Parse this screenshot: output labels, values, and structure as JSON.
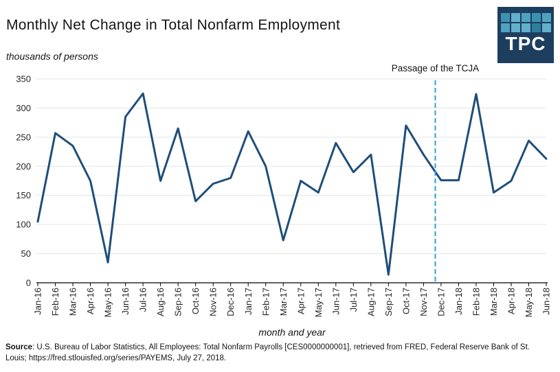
{
  "header": {
    "title": "Monthly Net Change in Total Nonfarm Employment",
    "subtitle": "thousands of persons"
  },
  "logo": {
    "text": "TPC",
    "bg": "#1E3E5F",
    "squares": [
      "#3C93B1",
      "#62B0CB",
      "#4FA2C0",
      "#3C93B1",
      "#4FA2C0",
      "#4FA2C0",
      "#62B0CB",
      "#62B0CB",
      "#2F7D9E",
      "#62B0CB"
    ]
  },
  "footer": {
    "source_label": "Source",
    "source_text": ": U.S. Bureau of Labor Statistics, All Employees: Total Nonfarm Payrolls [CES0000000001], retrieved from FRED, Federal Reserve Bank of St. Louis; https://fred.stlouisfed.org/series/PAYEMS, July 27, 2018."
  },
  "chart_data": {
    "type": "line",
    "title": "Monthly Net Change in Total Nonfarm Employment",
    "ylabel": "thousands of persons",
    "xlabel": "month and year",
    "categories": [
      "Jan-16",
      "Feb-16",
      "Mar-16",
      "Apr-16",
      "May-16",
      "Jun-16",
      "Jul-16",
      "Aug-16",
      "Sep-16",
      "Oct-16",
      "Nov-16",
      "Dec-16",
      "Jan-17",
      "Feb-17",
      "Mar-17",
      "Apr-17",
      "May-17",
      "Jun-17",
      "Jul-17",
      "Aug-17",
      "Sep-17",
      "Oct-17",
      "Nov-17",
      "Dec-17",
      "Jan-18",
      "Feb-18",
      "Mar-18",
      "Apr-18",
      "May-18",
      "Jun-18"
    ],
    "values": [
      105,
      257,
      235,
      175,
      35,
      285,
      325,
      175,
      265,
      140,
      170,
      180,
      260,
      200,
      73,
      175,
      155,
      240,
      190,
      220,
      14,
      270,
      220,
      176,
      176,
      324,
      155,
      175,
      244,
      213
    ],
    "ylim": [
      0,
      350
    ],
    "yticks": [
      0,
      50,
      100,
      150,
      200,
      250,
      300,
      350
    ],
    "grid": true,
    "legend": "none",
    "line_color": "#1F4E79",
    "grid_color": "#E3E3E3",
    "axis_color": "#000000",
    "vline": {
      "label": "Passage of the TCJA",
      "x_index": 22.67,
      "color": "#2E9FD6",
      "style": "dashed"
    }
  }
}
